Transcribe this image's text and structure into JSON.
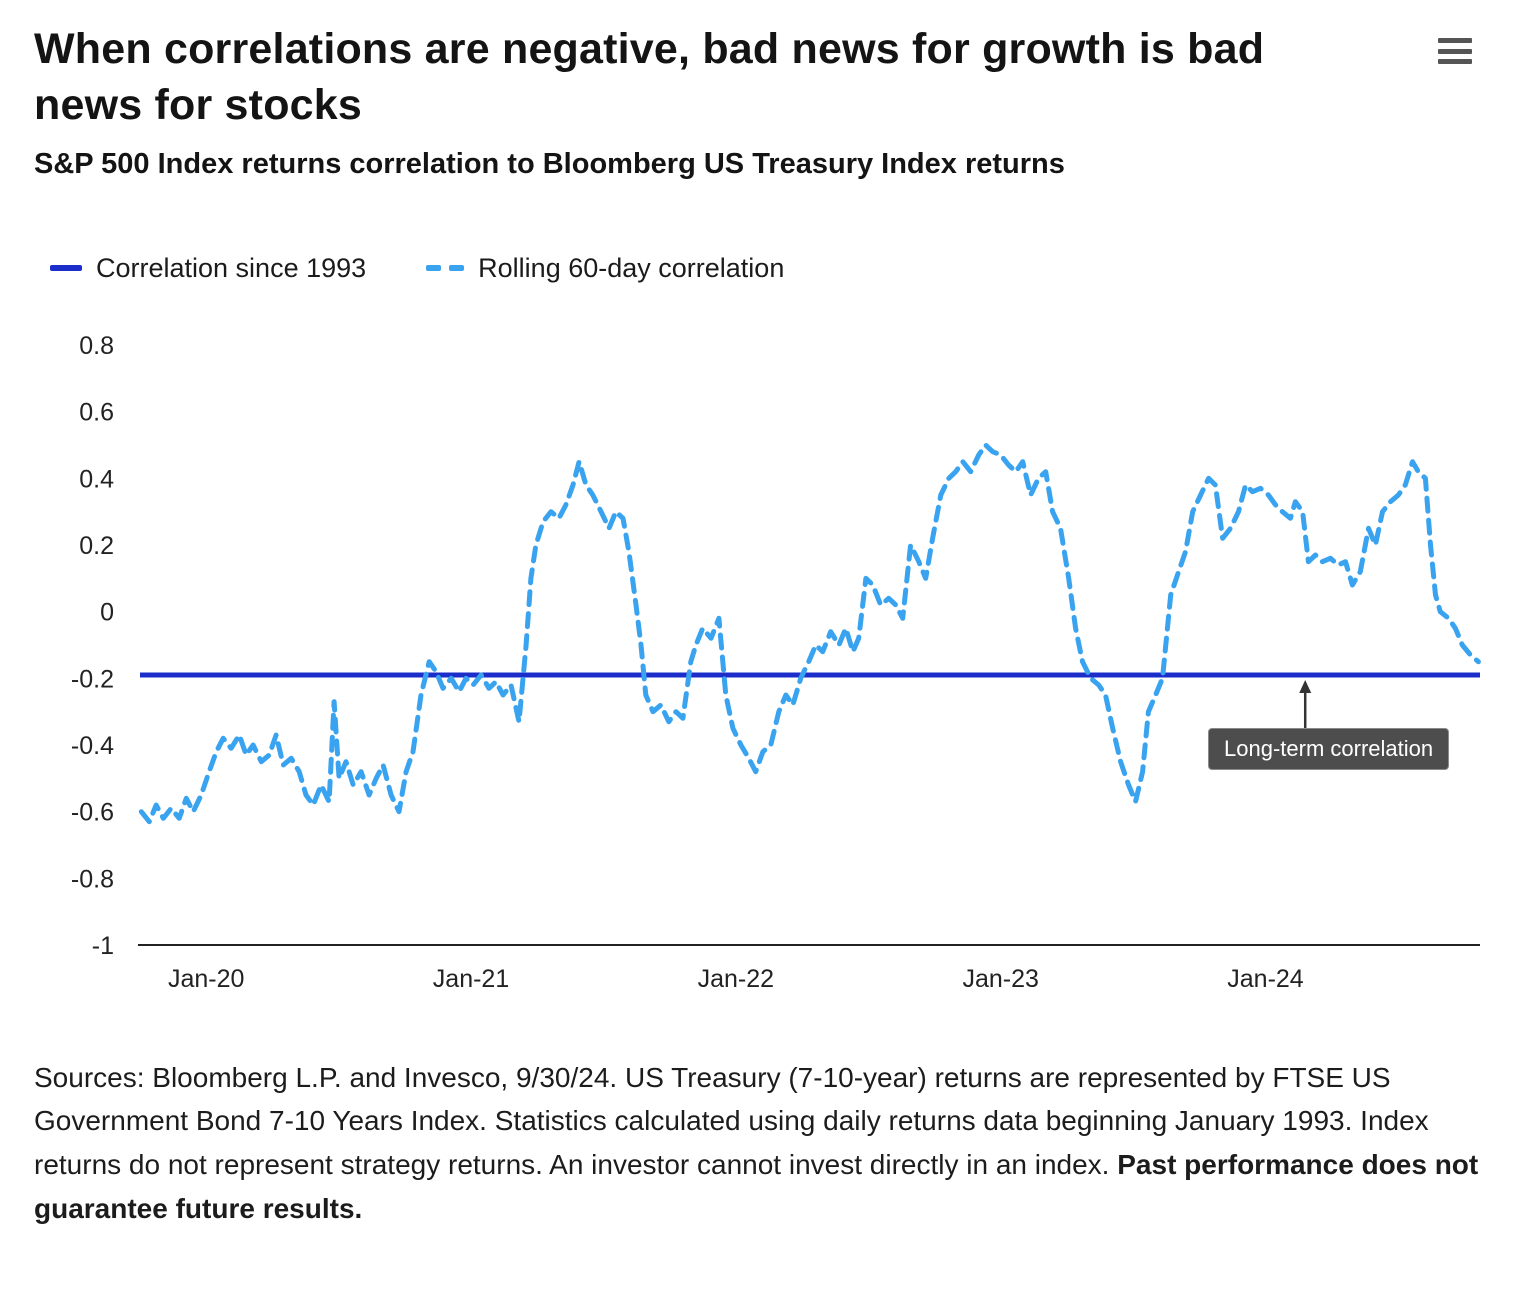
{
  "header": {
    "title": "When correlations are negative, bad news for growth is bad news for stocks",
    "subtitle": "S&P 500 Index returns correlation to Bloomberg US Treasury Index returns"
  },
  "legend": [
    {
      "label": "Correlation since 1993",
      "style": "solid",
      "color": "#1b2ec9"
    },
    {
      "label": "Rolling 60-day correlation",
      "style": "dashed",
      "color": "#3aa3f0"
    }
  ],
  "footer": {
    "text_regular": "Sources: Bloomberg L.P. and Invesco, 9/30/24. US Treasury (7-10-year) returns are represented by FTSE US Government Bond 7-10 Years Index. Statistics calculated using daily returns data beginning January 1993. Index returns do not represent strategy returns. An investor cannot invest directly in an index. ",
    "text_bold": "Past performance does not guarantee future results."
  },
  "chart_data": {
    "type": "line",
    "title": "When correlations are negative, bad news for growth is bad news for stocks",
    "subtitle": "S&P 500 Index returns correlation to Bloomberg US Treasury Index returns",
    "xlabel": "",
    "ylabel": "",
    "grid": false,
    "legend_position": "top-left",
    "ylim": [
      -1,
      0.8
    ],
    "xlim": [
      2019.75,
      2024.81
    ],
    "y_ticks": [
      {
        "value": 0.8,
        "label": "0.8"
      },
      {
        "value": 0.6,
        "label": "0.6"
      },
      {
        "value": 0.4,
        "label": "0.4"
      },
      {
        "value": 0.2,
        "label": "0.2"
      },
      {
        "value": 0,
        "label": "0"
      },
      {
        "value": -0.2,
        "label": "-0.2"
      },
      {
        "value": -0.4,
        "label": "-0.4"
      },
      {
        "value": -0.6,
        "label": "-0.6"
      },
      {
        "value": -0.8,
        "label": "-0.8"
      },
      {
        "value": -1,
        "label": "-1"
      }
    ],
    "x_ticks": [
      {
        "value": 2020,
        "label": "Jan-20"
      },
      {
        "value": 2021,
        "label": "Jan-21"
      },
      {
        "value": 2022,
        "label": "Jan-22"
      },
      {
        "value": 2023,
        "label": "Jan-23"
      },
      {
        "value": 2024,
        "label": "Jan-24"
      }
    ],
    "series": [
      {
        "name": "Correlation since 1993",
        "type": "hline",
        "value": -0.19,
        "color": "#1b2ec9",
        "style": "solid"
      },
      {
        "name": "Rolling 60-day correlation",
        "type": "line",
        "color": "#3aa3f0",
        "style": "dashed",
        "points": [
          [
            2019.755,
            -0.6
          ],
          [
            2019.785,
            -0.63
          ],
          [
            2019.811,
            -0.58
          ],
          [
            2019.838,
            -0.62
          ],
          [
            2019.868,
            -0.59
          ],
          [
            2019.898,
            -0.62
          ],
          [
            2019.925,
            -0.56
          ],
          [
            2019.951,
            -0.6
          ],
          [
            2019.981,
            -0.55
          ],
          [
            2020.011,
            -0.48
          ],
          [
            2020.038,
            -0.42
          ],
          [
            2020.064,
            -0.38
          ],
          [
            2020.094,
            -0.41
          ],
          [
            2020.125,
            -0.37
          ],
          [
            2020.151,
            -0.43
          ],
          [
            2020.177,
            -0.4
          ],
          [
            2020.208,
            -0.45
          ],
          [
            2020.238,
            -0.43
          ],
          [
            2020.264,
            -0.37
          ],
          [
            2020.291,
            -0.46
          ],
          [
            2020.321,
            -0.44
          ],
          [
            2020.351,
            -0.48
          ],
          [
            2020.377,
            -0.55
          ],
          [
            2020.404,
            -0.58
          ],
          [
            2020.434,
            -0.52
          ],
          [
            2020.464,
            -0.57
          ],
          [
            2020.483,
            -0.27
          ],
          [
            2020.502,
            -0.5
          ],
          [
            2020.528,
            -0.45
          ],
          [
            2020.555,
            -0.52
          ],
          [
            2020.585,
            -0.48
          ],
          [
            2020.615,
            -0.55
          ],
          [
            2020.642,
            -0.5
          ],
          [
            2020.668,
            -0.46
          ],
          [
            2020.698,
            -0.55
          ],
          [
            2020.728,
            -0.6
          ],
          [
            2020.755,
            -0.48
          ],
          [
            2020.781,
            -0.42
          ],
          [
            2020.811,
            -0.25
          ],
          [
            2020.842,
            -0.15
          ],
          [
            2020.868,
            -0.18
          ],
          [
            2020.894,
            -0.23
          ],
          [
            2020.925,
            -0.2
          ],
          [
            2020.955,
            -0.24
          ],
          [
            2020.981,
            -0.2
          ],
          [
            2021.008,
            -0.22
          ],
          [
            2021.038,
            -0.19
          ],
          [
            2021.068,
            -0.23
          ],
          [
            2021.094,
            -0.21
          ],
          [
            2021.121,
            -0.25
          ],
          [
            2021.151,
            -0.22
          ],
          [
            2021.181,
            -0.33
          ],
          [
            2021.208,
            -0.1
          ],
          [
            2021.226,
            0.1
          ],
          [
            2021.245,
            0.2
          ],
          [
            2021.272,
            0.27
          ],
          [
            2021.302,
            0.3
          ],
          [
            2021.332,
            0.28
          ],
          [
            2021.358,
            0.32
          ],
          [
            2021.385,
            0.38
          ],
          [
            2021.408,
            0.45
          ],
          [
            2021.434,
            0.38
          ],
          [
            2021.46,
            0.35
          ],
          [
            2021.491,
            0.3
          ],
          [
            2021.521,
            0.25
          ],
          [
            2021.547,
            0.3
          ],
          [
            2021.574,
            0.28
          ],
          [
            2021.596,
            0.18
          ],
          [
            2021.623,
            0.02
          ],
          [
            2021.642,
            -0.1
          ],
          [
            2021.66,
            -0.25
          ],
          [
            2021.687,
            -0.3
          ],
          [
            2021.717,
            -0.28
          ],
          [
            2021.747,
            -0.33
          ],
          [
            2021.774,
            -0.3
          ],
          [
            2021.8,
            -0.32
          ],
          [
            2021.83,
            -0.15
          ],
          [
            2021.849,
            -0.1
          ],
          [
            2021.875,
            -0.05
          ],
          [
            2021.906,
            -0.08
          ],
          [
            2021.936,
            -0.02
          ],
          [
            2021.962,
            -0.25
          ],
          [
            2021.989,
            -0.35
          ],
          [
            2022.019,
            -0.4
          ],
          [
            2022.049,
            -0.44
          ],
          [
            2022.075,
            -0.48
          ],
          [
            2022.102,
            -0.42
          ],
          [
            2022.132,
            -0.4
          ],
          [
            2022.162,
            -0.3
          ],
          [
            2022.189,
            -0.25
          ],
          [
            2022.215,
            -0.28
          ],
          [
            2022.245,
            -0.2
          ],
          [
            2022.275,
            -0.15
          ],
          [
            2022.302,
            -0.1
          ],
          [
            2022.328,
            -0.12
          ],
          [
            2022.358,
            -0.06
          ],
          [
            2022.389,
            -0.1
          ],
          [
            2022.415,
            -0.05
          ],
          [
            2022.442,
            -0.12
          ],
          [
            2022.464,
            -0.08
          ],
          [
            2022.491,
            0.1
          ],
          [
            2022.517,
            0.08
          ],
          [
            2022.547,
            0.02
          ],
          [
            2022.577,
            0.04
          ],
          [
            2022.604,
            0.02
          ],
          [
            2022.63,
            -0.02
          ],
          [
            2022.66,
            0.2
          ],
          [
            2022.691,
            0.15
          ],
          [
            2022.717,
            0.1
          ],
          [
            2022.743,
            0.22
          ],
          [
            2022.774,
            0.35
          ],
          [
            2022.804,
            0.4
          ],
          [
            2022.83,
            0.42
          ],
          [
            2022.857,
            0.45
          ],
          [
            2022.887,
            0.42
          ],
          [
            2022.917,
            0.47
          ],
          [
            2022.943,
            0.5
          ],
          [
            2022.97,
            0.48
          ],
          [
            2023.0,
            0.47
          ],
          [
            2023.03,
            0.44
          ],
          [
            2023.057,
            0.42
          ],
          [
            2023.083,
            0.45
          ],
          [
            2023.113,
            0.35
          ],
          [
            2023.143,
            0.4
          ],
          [
            2023.17,
            0.42
          ],
          [
            2023.196,
            0.3
          ],
          [
            2023.226,
            0.25
          ],
          [
            2023.257,
            0.1
          ],
          [
            2023.283,
            -0.05
          ],
          [
            2023.309,
            -0.15
          ],
          [
            2023.34,
            -0.2
          ],
          [
            2023.37,
            -0.22
          ],
          [
            2023.396,
            -0.25
          ],
          [
            2023.423,
            -0.35
          ],
          [
            2023.453,
            -0.45
          ],
          [
            2023.483,
            -0.52
          ],
          [
            2023.509,
            -0.57
          ],
          [
            2023.536,
            -0.48
          ],
          [
            2023.558,
            -0.3
          ],
          [
            2023.585,
            -0.25
          ],
          [
            2023.611,
            -0.2
          ],
          [
            2023.642,
            0.05
          ],
          [
            2023.672,
            0.12
          ],
          [
            2023.698,
            0.18
          ],
          [
            2023.725,
            0.3
          ],
          [
            2023.755,
            0.35
          ],
          [
            2023.785,
            0.4
          ],
          [
            2023.811,
            0.38
          ],
          [
            2023.838,
            0.22
          ],
          [
            2023.868,
            0.25
          ],
          [
            2023.898,
            0.3
          ],
          [
            2023.925,
            0.38
          ],
          [
            2023.951,
            0.36
          ],
          [
            2023.981,
            0.37
          ],
          [
            2024.011,
            0.35
          ],
          [
            2024.038,
            0.32
          ],
          [
            2024.064,
            0.3
          ],
          [
            2024.094,
            0.28
          ],
          [
            2024.113,
            0.33
          ],
          [
            2024.14,
            0.3
          ],
          [
            2024.162,
            0.15
          ],
          [
            2024.189,
            0.17
          ],
          [
            2024.215,
            0.15
          ],
          [
            2024.245,
            0.16
          ],
          [
            2024.275,
            0.14
          ],
          [
            2024.302,
            0.15
          ],
          [
            2024.328,
            0.08
          ],
          [
            2024.358,
            0.12
          ],
          [
            2024.389,
            0.25
          ],
          [
            2024.415,
            0.2
          ],
          [
            2024.442,
            0.3
          ],
          [
            2024.472,
            0.33
          ],
          [
            2024.502,
            0.35
          ],
          [
            2024.528,
            0.38
          ],
          [
            2024.555,
            0.45
          ],
          [
            2024.577,
            0.42
          ],
          [
            2024.604,
            0.4
          ],
          [
            2024.623,
            0.2
          ],
          [
            2024.642,
            0.05
          ],
          [
            2024.66,
            0.0
          ],
          [
            2024.691,
            -0.02
          ],
          [
            2024.717,
            -0.05
          ],
          [
            2024.743,
            -0.1
          ],
          [
            2024.774,
            -0.13
          ],
          [
            2024.804,
            -0.15
          ]
        ]
      }
    ],
    "annotation": {
      "label": "Long-term correlation",
      "x": 2024.15,
      "points_to": -0.19
    }
  }
}
